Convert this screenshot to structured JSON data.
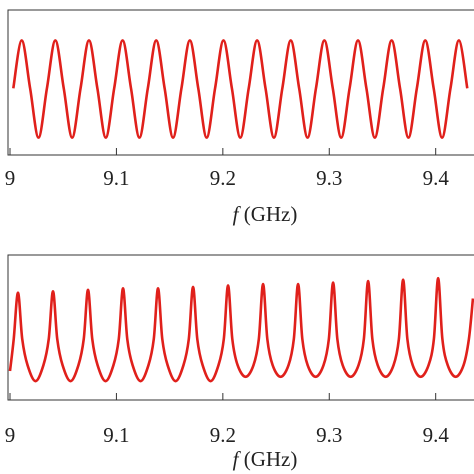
{
  "chart_data": [
    {
      "type": "line",
      "x_label": "f (GHz)",
      "xlim": [
        9,
        9.436
      ],
      "ylim": [
        0,
        1
      ],
      "xticks": [
        9,
        9.1,
        9.2,
        9.3,
        9.4
      ],
      "x": [
        9.0031,
        9.011,
        9.0189,
        9.0268,
        9.0347,
        9.0426,
        9.0505,
        9.0584,
        9.0663,
        9.0742,
        9.0821,
        9.09,
        9.0979,
        9.1058,
        9.1137,
        9.1216,
        9.1295,
        9.1374,
        9.1453,
        9.1532,
        9.1611,
        9.169,
        9.1769,
        9.1848,
        9.1927,
        9.2006,
        9.2085,
        9.2164,
        9.2243,
        9.2322,
        9.2401,
        9.248,
        9.2559,
        9.2638,
        9.2717,
        9.2796,
        9.2875,
        9.2954,
        9.3033,
        9.3112,
        9.3191,
        9.327,
        9.3349,
        9.3428,
        9.3507,
        9.3586,
        9.3665,
        9.3744,
        9.3823,
        9.3902,
        9.3981,
        9.406,
        9.4139,
        9.4218,
        9.4297
      ],
      "series": [
        {
          "color": "#e0201b",
          "values": [
            0.46,
            0.79,
            0.46,
            0.12,
            0.46,
            0.79,
            0.46,
            0.12,
            0.46,
            0.79,
            0.46,
            0.12,
            0.46,
            0.79,
            0.46,
            0.12,
            0.46,
            0.79,
            0.46,
            0.12,
            0.46,
            0.79,
            0.46,
            0.12,
            0.46,
            0.79,
            0.46,
            0.12,
            0.46,
            0.79,
            0.46,
            0.12,
            0.46,
            0.79,
            0.46,
            0.12,
            0.46,
            0.79,
            0.46,
            0.12,
            0.46,
            0.79,
            0.46,
            0.12,
            0.46,
            0.79,
            0.46,
            0.12,
            0.46,
            0.79,
            0.46,
            0.12,
            0.46,
            0.79,
            0.46
          ]
        }
      ]
    },
    {
      "type": "line",
      "x_label": "f (GHz)",
      "xlim": [
        9,
        9.436
      ],
      "ylim": [
        0,
        1
      ],
      "xticks": [
        9,
        9.1,
        9.2,
        9.3,
        9.4
      ],
      "x": [
        9.0,
        9.0035,
        9.0075,
        9.0115,
        9.0165,
        9.024,
        9.0314,
        9.0364,
        9.0404,
        9.0444,
        9.0494,
        9.0569,
        9.0643,
        9.0693,
        9.0733,
        9.0773,
        9.0823,
        9.0898,
        9.0972,
        9.1022,
        9.1062,
        9.1102,
        9.1152,
        9.1227,
        9.1301,
        9.1351,
        9.1391,
        9.1431,
        9.1481,
        9.1556,
        9.163,
        9.168,
        9.172,
        9.176,
        9.181,
        9.1885,
        9.1959,
        9.2009,
        9.2049,
        9.2089,
        9.2139,
        9.2214,
        9.2288,
        9.2338,
        9.2378,
        9.2418,
        9.2468,
        9.2543,
        9.2617,
        9.2667,
        9.2707,
        9.2747,
        9.2797,
        9.2872,
        9.2946,
        9.2996,
        9.3036,
        9.3076,
        9.3126,
        9.3201,
        9.3275,
        9.3325,
        9.3365,
        9.3405,
        9.3455,
        9.353,
        9.3604,
        9.3654,
        9.3694,
        9.3734,
        9.3784,
        9.3859,
        9.3933,
        9.3983,
        9.4023,
        9.4063,
        9.4113,
        9.4188,
        9.4262,
        9.4312,
        9.435
      ],
      "series": [
        {
          "color": "#e0201b",
          "values": [
            0.2,
            0.42,
            0.74,
            0.42,
            0.24,
            0.13,
            0.24,
            0.42,
            0.75,
            0.42,
            0.24,
            0.13,
            0.24,
            0.42,
            0.76,
            0.42,
            0.24,
            0.13,
            0.24,
            0.42,
            0.77,
            0.42,
            0.24,
            0.13,
            0.24,
            0.42,
            0.77,
            0.42,
            0.24,
            0.13,
            0.24,
            0.42,
            0.78,
            0.42,
            0.24,
            0.13,
            0.24,
            0.42,
            0.79,
            0.42,
            0.24,
            0.16,
            0.24,
            0.42,
            0.8,
            0.42,
            0.24,
            0.16,
            0.24,
            0.42,
            0.8,
            0.42,
            0.24,
            0.16,
            0.24,
            0.42,
            0.81,
            0.42,
            0.24,
            0.16,
            0.24,
            0.42,
            0.82,
            0.42,
            0.24,
            0.16,
            0.24,
            0.42,
            0.83,
            0.42,
            0.24,
            0.16,
            0.24,
            0.42,
            0.84,
            0.42,
            0.24,
            0.16,
            0.24,
            0.42,
            0.7
          ]
        }
      ]
    }
  ]
}
